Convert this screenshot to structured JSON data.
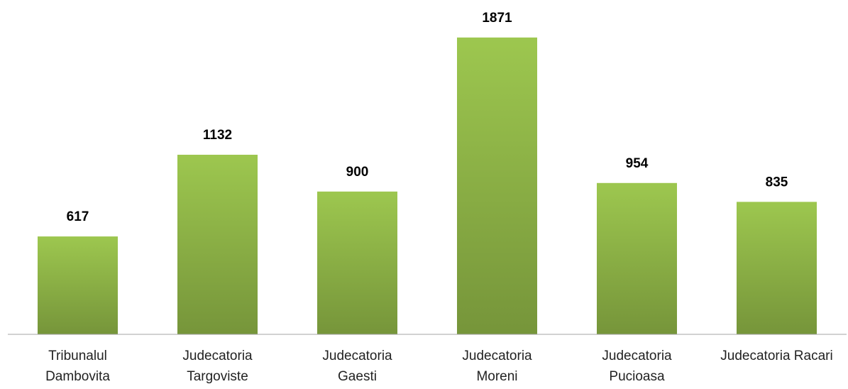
{
  "chart_data": {
    "type": "bar",
    "categories": [
      [
        "Tribunalul",
        "Dambovita"
      ],
      [
        "Judecatoria",
        "Targoviste"
      ],
      [
        "Judecatoria",
        "Gaesti"
      ],
      [
        "Judecatoria",
        "Moreni"
      ],
      [
        "Judecatoria",
        "Pucioasa"
      ],
      [
        "Judecatoria Racari"
      ]
    ],
    "values": [
      617,
      1132,
      900,
      1871,
      954,
      835
    ],
    "color": "#8db446",
    "ylim": [
      0,
      2000
    ]
  }
}
